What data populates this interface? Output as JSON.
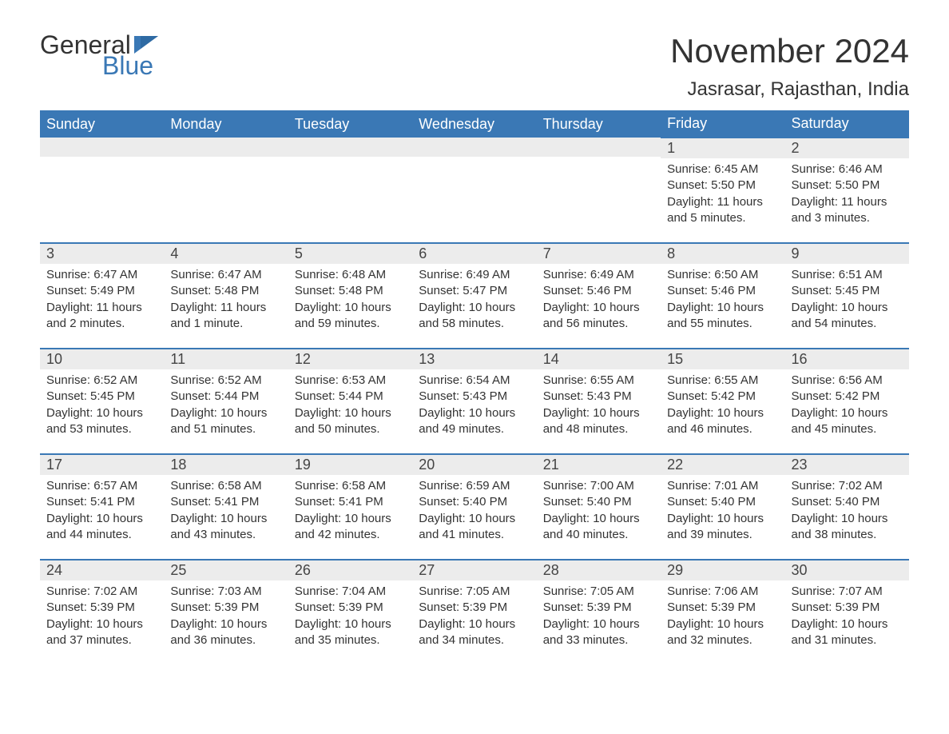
{
  "brand": {
    "general": "General",
    "blue": "Blue"
  },
  "title": "November 2024",
  "location": "Jasrasar, Rajasthan, India",
  "colors": {
    "accent": "#3a78b5",
    "header_bg": "#3a78b5",
    "header_text": "#ffffff",
    "daynum_bg": "#ececec",
    "text": "#333333",
    "background": "#ffffff"
  },
  "weekdays": [
    "Sunday",
    "Monday",
    "Tuesday",
    "Wednesday",
    "Thursday",
    "Friday",
    "Saturday"
  ],
  "weeks": [
    [
      null,
      null,
      null,
      null,
      null,
      {
        "day": 1,
        "sunrise": "6:45 AM",
        "sunset": "5:50 PM",
        "daylight": "11 hours and 5 minutes."
      },
      {
        "day": 2,
        "sunrise": "6:46 AM",
        "sunset": "5:50 PM",
        "daylight": "11 hours and 3 minutes."
      }
    ],
    [
      {
        "day": 3,
        "sunrise": "6:47 AM",
        "sunset": "5:49 PM",
        "daylight": "11 hours and 2 minutes."
      },
      {
        "day": 4,
        "sunrise": "6:47 AM",
        "sunset": "5:48 PM",
        "daylight": "11 hours and 1 minute."
      },
      {
        "day": 5,
        "sunrise": "6:48 AM",
        "sunset": "5:48 PM",
        "daylight": "10 hours and 59 minutes."
      },
      {
        "day": 6,
        "sunrise": "6:49 AM",
        "sunset": "5:47 PM",
        "daylight": "10 hours and 58 minutes."
      },
      {
        "day": 7,
        "sunrise": "6:49 AM",
        "sunset": "5:46 PM",
        "daylight": "10 hours and 56 minutes."
      },
      {
        "day": 8,
        "sunrise": "6:50 AM",
        "sunset": "5:46 PM",
        "daylight": "10 hours and 55 minutes."
      },
      {
        "day": 9,
        "sunrise": "6:51 AM",
        "sunset": "5:45 PM",
        "daylight": "10 hours and 54 minutes."
      }
    ],
    [
      {
        "day": 10,
        "sunrise": "6:52 AM",
        "sunset": "5:45 PM",
        "daylight": "10 hours and 53 minutes."
      },
      {
        "day": 11,
        "sunrise": "6:52 AM",
        "sunset": "5:44 PM",
        "daylight": "10 hours and 51 minutes."
      },
      {
        "day": 12,
        "sunrise": "6:53 AM",
        "sunset": "5:44 PM",
        "daylight": "10 hours and 50 minutes."
      },
      {
        "day": 13,
        "sunrise": "6:54 AM",
        "sunset": "5:43 PM",
        "daylight": "10 hours and 49 minutes."
      },
      {
        "day": 14,
        "sunrise": "6:55 AM",
        "sunset": "5:43 PM",
        "daylight": "10 hours and 48 minutes."
      },
      {
        "day": 15,
        "sunrise": "6:55 AM",
        "sunset": "5:42 PM",
        "daylight": "10 hours and 46 minutes."
      },
      {
        "day": 16,
        "sunrise": "6:56 AM",
        "sunset": "5:42 PM",
        "daylight": "10 hours and 45 minutes."
      }
    ],
    [
      {
        "day": 17,
        "sunrise": "6:57 AM",
        "sunset": "5:41 PM",
        "daylight": "10 hours and 44 minutes."
      },
      {
        "day": 18,
        "sunrise": "6:58 AM",
        "sunset": "5:41 PM",
        "daylight": "10 hours and 43 minutes."
      },
      {
        "day": 19,
        "sunrise": "6:58 AM",
        "sunset": "5:41 PM",
        "daylight": "10 hours and 42 minutes."
      },
      {
        "day": 20,
        "sunrise": "6:59 AM",
        "sunset": "5:40 PM",
        "daylight": "10 hours and 41 minutes."
      },
      {
        "day": 21,
        "sunrise": "7:00 AM",
        "sunset": "5:40 PM",
        "daylight": "10 hours and 40 minutes."
      },
      {
        "day": 22,
        "sunrise": "7:01 AM",
        "sunset": "5:40 PM",
        "daylight": "10 hours and 39 minutes."
      },
      {
        "day": 23,
        "sunrise": "7:02 AM",
        "sunset": "5:40 PM",
        "daylight": "10 hours and 38 minutes."
      }
    ],
    [
      {
        "day": 24,
        "sunrise": "7:02 AM",
        "sunset": "5:39 PM",
        "daylight": "10 hours and 37 minutes."
      },
      {
        "day": 25,
        "sunrise": "7:03 AM",
        "sunset": "5:39 PM",
        "daylight": "10 hours and 36 minutes."
      },
      {
        "day": 26,
        "sunrise": "7:04 AM",
        "sunset": "5:39 PM",
        "daylight": "10 hours and 35 minutes."
      },
      {
        "day": 27,
        "sunrise": "7:05 AM",
        "sunset": "5:39 PM",
        "daylight": "10 hours and 34 minutes."
      },
      {
        "day": 28,
        "sunrise": "7:05 AM",
        "sunset": "5:39 PM",
        "daylight": "10 hours and 33 minutes."
      },
      {
        "day": 29,
        "sunrise": "7:06 AM",
        "sunset": "5:39 PM",
        "daylight": "10 hours and 32 minutes."
      },
      {
        "day": 30,
        "sunrise": "7:07 AM",
        "sunset": "5:39 PM",
        "daylight": "10 hours and 31 minutes."
      }
    ]
  ],
  "labels": {
    "sunrise": "Sunrise: ",
    "sunset": "Sunset: ",
    "daylight": "Daylight: "
  }
}
